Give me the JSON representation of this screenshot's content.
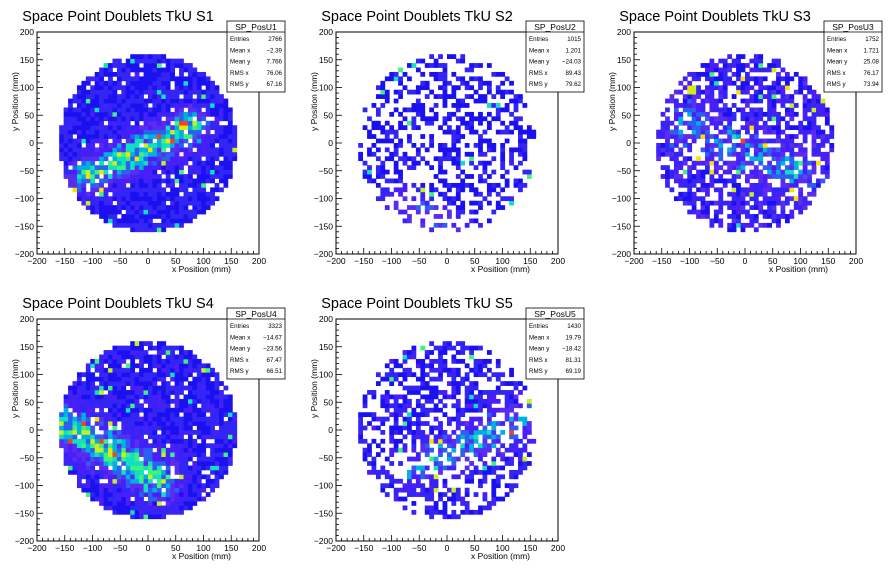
{
  "chart_data": [
    {
      "type": "heatmap",
      "title": "Space Point Doublets TkU S1",
      "xlabel": "x Position (mm)",
      "ylabel": "y Position (mm)",
      "xlim": [
        -200,
        200
      ],
      "ylim": [
        -200,
        200
      ],
      "xticks": [
        -200,
        -150,
        -100,
        -50,
        0,
        50,
        100,
        150,
        200
      ],
      "yticks": [
        -200,
        -150,
        -100,
        -50,
        0,
        50,
        100,
        150,
        200
      ],
      "xtick_labels": [
        "−200",
        "−150",
        "−100",
        "−50",
        "0",
        "50",
        "100",
        "150",
        "200"
      ],
      "ytick_labels": [
        "−200",
        "−150",
        "−100",
        "−50",
        "0",
        "50",
        "100",
        "150",
        "200"
      ],
      "stats": {
        "name": "SP_PosU1",
        "rows": [
          {
            "label": "Entries",
            "value": "2766"
          },
          {
            "label": "Mean x",
            "value": "−2.39"
          },
          {
            "label": "Mean y",
            "value": "7.766"
          },
          {
            "label": "RMS x",
            "value": "76.06"
          },
          {
            "label": "RMS y",
            "value": "67.16"
          }
        ]
      },
      "bins": 50,
      "radius": 160,
      "pattern": {
        "fill": 0.93,
        "base": 1.4,
        "band": {
          "x1": -110,
          "y1": -60,
          "x2": 80,
          "y2": 30,
          "width": 22,
          "amp": 4.5
        },
        "seed": 11
      }
    },
    {
      "type": "heatmap",
      "title": "Space Point Doublets TkU S2",
      "xlabel": "x Position (mm)",
      "ylabel": "y Position (mm)",
      "xlim": [
        -200,
        200
      ],
      "ylim": [
        -200,
        200
      ],
      "xticks": [
        -200,
        -150,
        -100,
        -50,
        0,
        50,
        100,
        150,
        200
      ],
      "yticks": [
        -200,
        -150,
        -100,
        -50,
        0,
        50,
        100,
        150,
        200
      ],
      "xtick_labels": [
        "−200",
        "−150",
        "−100",
        "−50",
        "0",
        "50",
        "100",
        "150",
        "200"
      ],
      "ytick_labels": [
        "−200",
        "−150",
        "−100",
        "−50",
        "0",
        "50",
        "100",
        "150",
        "200"
      ],
      "stats": {
        "name": "SP_PosU2",
        "rows": [
          {
            "label": "Entries",
            "value": "1015"
          },
          {
            "label": "Mean x",
            "value": "1.201"
          },
          {
            "label": "Mean y",
            "value": "−24.03"
          },
          {
            "label": "RMS x",
            "value": "89.43"
          },
          {
            "label": "RMS y",
            "value": "79.62"
          }
        ]
      },
      "bins": 50,
      "radius": 160,
      "pattern": {
        "fill": 0.42,
        "base": 1.1,
        "band": {
          "x1": -80,
          "y1": -110,
          "x2": 10,
          "y2": -150,
          "width": 20,
          "amp": 2.5
        },
        "seed": 23
      }
    },
    {
      "type": "heatmap",
      "title": "Space Point Doublets TkU S3",
      "xlabel": "x Position (mm)",
      "ylabel": "y Position (mm)",
      "xlim": [
        -200,
        200
      ],
      "ylim": [
        -200,
        200
      ],
      "xticks": [
        -200,
        -150,
        -100,
        -50,
        0,
        50,
        100,
        150,
        200
      ],
      "yticks": [
        -200,
        -150,
        -100,
        -50,
        0,
        50,
        100,
        150,
        200
      ],
      "xtick_labels": [
        "−200",
        "−150",
        "−100",
        "−50",
        "0",
        "50",
        "100",
        "150",
        "200"
      ],
      "ytick_labels": [
        "−200",
        "−150",
        "−100",
        "−50",
        "0",
        "50",
        "100",
        "150",
        "200"
      ],
      "stats": {
        "name": "SP_PosU3",
        "rows": [
          {
            "label": "Entries",
            "value": "1752"
          },
          {
            "label": "Mean x",
            "value": "1.721"
          },
          {
            "label": "Mean y",
            "value": "25.08"
          },
          {
            "label": "RMS x",
            "value": "76.17"
          },
          {
            "label": "RMS y",
            "value": "73.94"
          }
        ]
      },
      "bins": 50,
      "radius": 160,
      "pattern": {
        "fill": 0.7,
        "base": 2.2,
        "band": {
          "x1": -120,
          "y1": 40,
          "x2": 100,
          "y2": -60,
          "width": 30,
          "amp": 2.0
        },
        "seed": 37
      }
    },
    {
      "type": "heatmap",
      "title": "Space Point Doublets TkU S4",
      "xlabel": "x Position (mm)",
      "ylabel": "y Position (mm)",
      "xlim": [
        -200,
        200
      ],
      "ylim": [
        -200,
        200
      ],
      "xticks": [
        -200,
        -150,
        -100,
        -50,
        0,
        50,
        100,
        150,
        200
      ],
      "yticks": [
        -200,
        -150,
        -100,
        -50,
        0,
        50,
        100,
        150,
        200
      ],
      "xtick_labels": [
        "−200",
        "−150",
        "−100",
        "−50",
        "0",
        "50",
        "100",
        "150",
        "200"
      ],
      "ytick_labels": [
        "−200",
        "−150",
        "−100",
        "−50",
        "0",
        "50",
        "100",
        "150",
        "200"
      ],
      "stats": {
        "name": "SP_PosU4",
        "rows": [
          {
            "label": "Entries",
            "value": "3323"
          },
          {
            "label": "Mean x",
            "value": "−14.67"
          },
          {
            "label": "Mean y",
            "value": "−23.56"
          },
          {
            "label": "RMS x",
            "value": "67.47"
          },
          {
            "label": "RMS y",
            "value": "66.51"
          }
        ]
      },
      "bins": 50,
      "radius": 160,
      "pattern": {
        "fill": 0.92,
        "base": 1.5,
        "band": {
          "x1": -150,
          "y1": 10,
          "x2": 20,
          "y2": -90,
          "width": 25,
          "amp": 4.5
        },
        "seed": 53
      }
    },
    {
      "type": "heatmap",
      "title": "Space Point Doublets TkU S5",
      "xlabel": "x Position (mm)",
      "ylabel": "y Position (mm)",
      "xlim": [
        -200,
        200
      ],
      "ylim": [
        -200,
        200
      ],
      "xticks": [
        -200,
        -150,
        -100,
        -50,
        0,
        50,
        100,
        150,
        200
      ],
      "yticks": [
        -200,
        -150,
        -100,
        -50,
        0,
        50,
        100,
        150,
        200
      ],
      "xtick_labels": [
        "−200",
        "−150",
        "−100",
        "−50",
        "0",
        "50",
        "100",
        "150",
        "200"
      ],
      "ytick_labels": [
        "−200",
        "−150",
        "−100",
        "−50",
        "0",
        "50",
        "100",
        "150",
        "200"
      ],
      "stats": {
        "name": "SP_PosU5",
        "rows": [
          {
            "label": "Entries",
            "value": "1430"
          },
          {
            "label": "Mean x",
            "value": "19.79"
          },
          {
            "label": "Mean y",
            "value": "−18.42"
          },
          {
            "label": "RMS x",
            "value": "81.31"
          },
          {
            "label": "RMS y",
            "value": "69.19"
          }
        ]
      },
      "bins": 50,
      "radius": 160,
      "pattern": {
        "fill": 0.55,
        "base": 1.6,
        "band": {
          "x1": -60,
          "y1": -70,
          "x2": 160,
          "y2": 30,
          "width": 22,
          "amp": 3.0
        },
        "seed": 71
      }
    }
  ],
  "colors": {
    "background": "#ffffff",
    "frame": "#000000",
    "palette": [
      "#1a10f0",
      "#3325f5",
      "#4a1ef8",
      "#5a2cf0",
      "#2c60f0",
      "#00b0e0",
      "#10e0c0",
      "#40f080",
      "#c8f020",
      "#f8e000",
      "#f84020"
    ]
  }
}
